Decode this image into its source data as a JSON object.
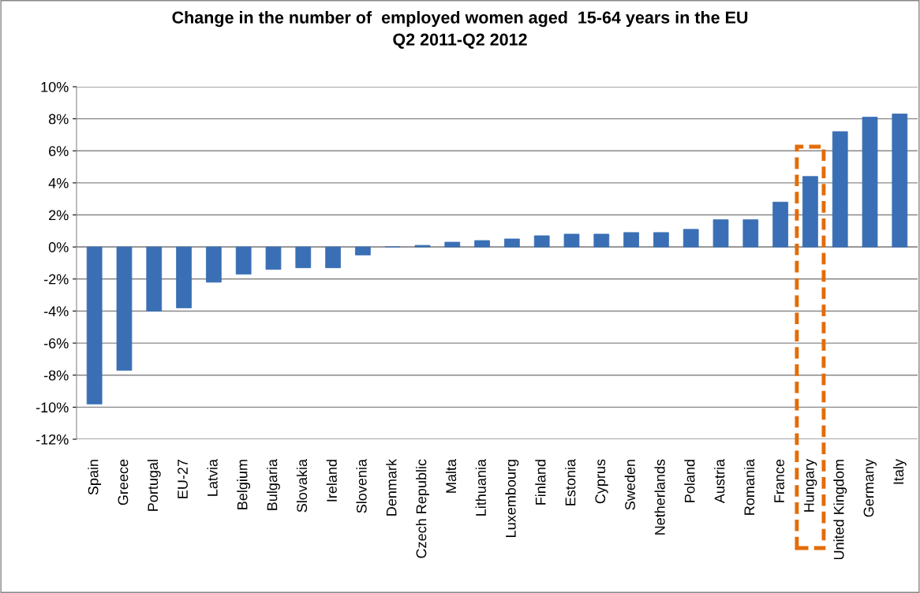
{
  "chart_data": {
    "type": "bar",
    "title": "Change in the number of  employed women aged  15-64 years in the EU\nQ2 2011-Q2 2012",
    "categories": [
      "Spain",
      "Greece",
      "Portugal",
      "EU-27",
      "Latvia",
      "Belgium",
      "Bulgaria",
      "Slovakia",
      "Ireland",
      "Slovenia",
      "Denmark",
      "Czech Republic",
      "Malta",
      "Lithuania",
      "Luxembourg",
      "Finland",
      "Estonia",
      "Cyprus",
      "Sweden",
      "Netherlands",
      "Poland",
      "Austria",
      "Romania",
      "France",
      "Hungary",
      "United Kingdom",
      "Germany",
      "Italy"
    ],
    "values": [
      -9.8,
      -7.7,
      -4.0,
      -3.8,
      -2.2,
      -1.7,
      -1.4,
      -1.3,
      -1.3,
      -0.5,
      0.0,
      0.1,
      0.3,
      0.4,
      0.5,
      0.7,
      0.8,
      0.8,
      0.9,
      0.9,
      1.1,
      1.7,
      1.7,
      2.8,
      4.4,
      7.2,
      8.1,
      8.3
    ],
    "color": "#3a6fb5",
    "ylim": [
      -12,
      10
    ],
    "yticks": [
      {
        "value": -12,
        "label": "-12%"
      },
      {
        "value": -10,
        "label": "-10%"
      },
      {
        "value": -8,
        "label": "-8%"
      },
      {
        "value": -6,
        "label": "-6%"
      },
      {
        "value": -4,
        "label": "-4%"
      },
      {
        "value": -2,
        "label": "-2%"
      },
      {
        "value": 0,
        "label": "0%"
      },
      {
        "value": 2,
        "label": "2%"
      },
      {
        "value": 4,
        "label": "4%"
      },
      {
        "value": 6,
        "label": "6%"
      },
      {
        "value": 8,
        "label": "8%"
      },
      {
        "value": 10,
        "label": "10%"
      }
    ],
    "grid": "y"
  }
}
